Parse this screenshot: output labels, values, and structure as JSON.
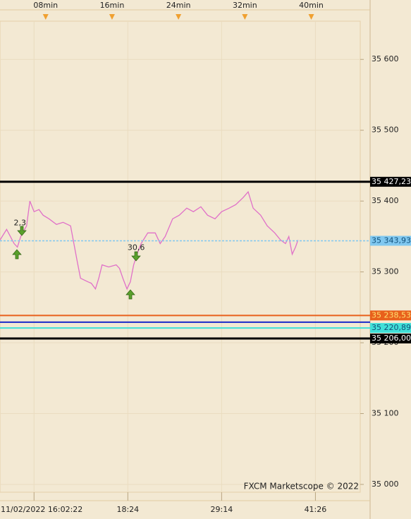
{
  "chart_data": {
    "type": "line",
    "footer": "FXCM Marketscope © 2022",
    "xlim": [
      2.5,
      45.9
    ],
    "ylim": [
      34989,
      35654
    ],
    "xticks": [
      {
        "value": 8,
        "label": "08min"
      },
      {
        "value": 16,
        "label": "16min"
      },
      {
        "value": 24,
        "label": "24min"
      },
      {
        "value": 32,
        "label": "32min"
      },
      {
        "value": 40,
        "label": "40min"
      }
    ],
    "xticks_bottom": [
      {
        "value": 6.6,
        "label": "11/02/2022 16:02:22"
      },
      {
        "value": 17.9,
        "label": "18:24"
      },
      {
        "value": 29.2,
        "label": "29:14"
      },
      {
        "value": 40.5,
        "label": "41:26"
      }
    ],
    "yticks": [
      {
        "value": 35000,
        "label": "35 000"
      },
      {
        "value": 35100,
        "label": "35 100"
      },
      {
        "value": 35200,
        "label": "35 200"
      },
      {
        "value": 35300,
        "label": "35 300"
      },
      {
        "value": 35400,
        "label": "35 400"
      },
      {
        "value": 35500,
        "label": "35 500"
      },
      {
        "value": 35600,
        "label": "35 600"
      }
    ],
    "grid": true,
    "series": [
      {
        "color": "#e070c8",
        "x": [
          2.5,
          3.3,
          4.2,
          4.6,
          5.0,
          5.7,
          6.1,
          6.6,
          7.2,
          7.7,
          8.4,
          9.3,
          10.1,
          11.0,
          11.4,
          11.8,
          12.2,
          13.1,
          13.5,
          14.0,
          14.4,
          14.8,
          15.6,
          16.5,
          16.9,
          17.3,
          17.8,
          18.2,
          18.6,
          19.0,
          19.5,
          20.3,
          21.2,
          21.8,
          22.4,
          23.3,
          24.1,
          25.0,
          25.8,
          26.7,
          27.5,
          28.4,
          29.2,
          30.1,
          30.9,
          31.8,
          32.4,
          33.0,
          33.9,
          34.7,
          35.6,
          36.3,
          36.9,
          37.3,
          37.7,
          38.1,
          38.4
        ],
        "values": [
          35345,
          35360,
          35340,
          35335,
          35350,
          35365,
          35400,
          35385,
          35388,
          35380,
          35375,
          35367,
          35370,
          35365,
          35340,
          35315,
          35291,
          35286,
          35284,
          35276,
          35291,
          35310,
          35307,
          35310,
          35305,
          35291,
          35276,
          35286,
          35310,
          35325,
          35340,
          35355,
          35355,
          35340,
          35350,
          35375,
          35380,
          35390,
          35385,
          35392,
          35380,
          35375,
          35385,
          35390,
          35395,
          35405,
          35413,
          35390,
          35380,
          35365,
          35355,
          35345,
          35340,
          35350,
          35325,
          35335,
          35345
        ]
      }
    ],
    "annotations": [
      {
        "text": "2,3",
        "x": 4.9,
        "y": 35369
      },
      {
        "text": "30,6",
        "x": 18.9,
        "y": 35334
      }
    ],
    "levels": [
      {
        "value": 35427.23,
        "label": "35 427,23",
        "color": "#000000",
        "width": 3
      },
      {
        "value": 35343.93,
        "label": "35 343,93",
        "color": "#80c8f0",
        "width": 1.5,
        "dashed": true
      },
      {
        "value": 35238.53,
        "label": "35 238,53",
        "color": "#e8601c",
        "width": 2
      },
      {
        "value": 35229,
        "color": "#1a2ac8",
        "width": 2
      },
      {
        "value": 35220.89,
        "label": "35 220,89",
        "color": "#40e0d8",
        "width": 2
      },
      {
        "value": 35206.0,
        "label": "35 206,00",
        "color": "#000000",
        "width": 3
      }
    ]
  }
}
